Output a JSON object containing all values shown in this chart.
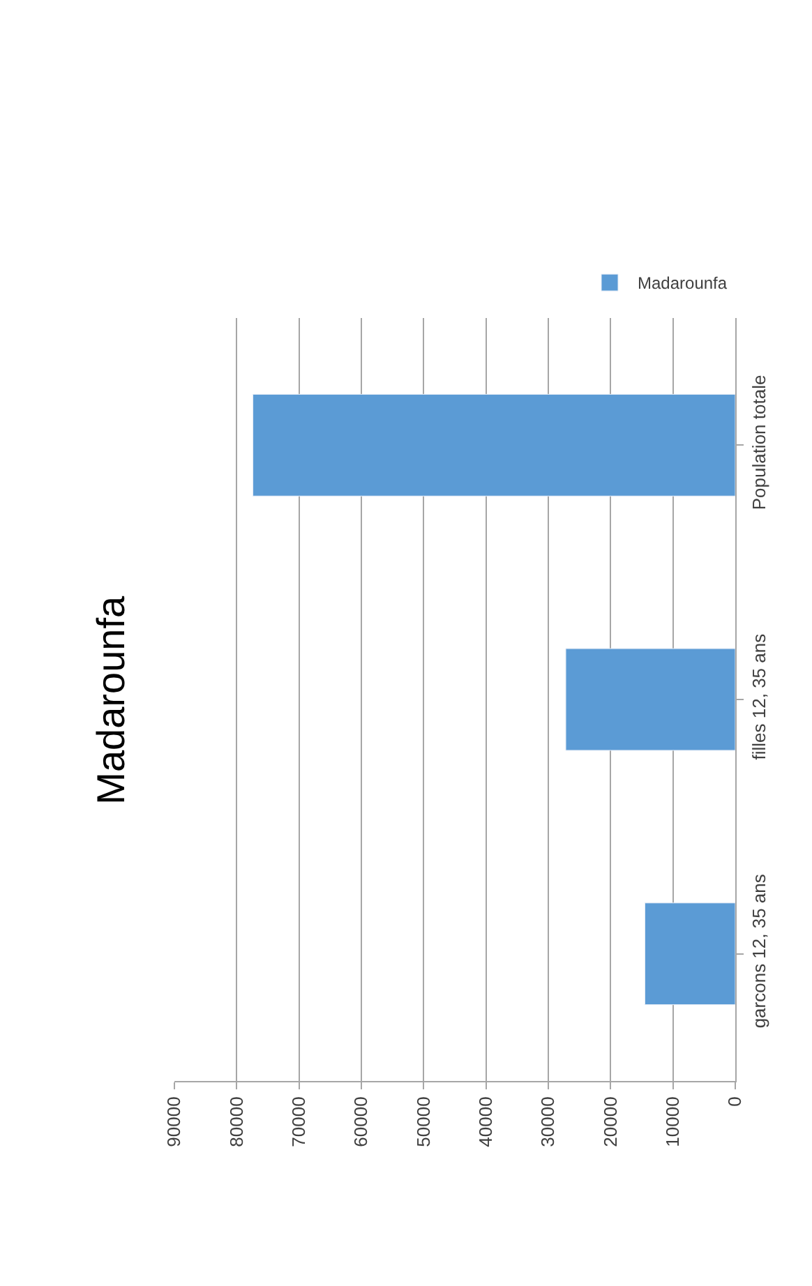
{
  "chart_data": {
    "type": "bar",
    "orientation": "horizontal",
    "title": "Madarounfa",
    "categories": [
      "Population totale",
      "filles 12, 35 ans",
      "garcons 12, 35 ans"
    ],
    "series": [
      {
        "name": "Madarounfa",
        "color": "#5b9bd5",
        "values": [
          77400,
          27200,
          14500
        ]
      }
    ],
    "xlim": [
      90000,
      0
    ],
    "xticks": [
      0,
      10000,
      20000,
      30000,
      40000,
      50000,
      60000,
      70000,
      80000,
      90000
    ],
    "grid": "x",
    "legend": "top right"
  }
}
